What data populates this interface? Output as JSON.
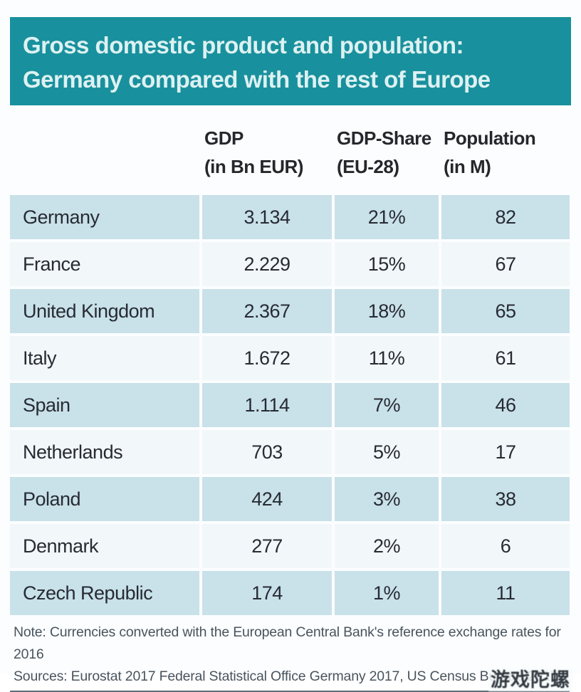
{
  "title": {
    "line1": "Gross domestic product and population:",
    "line2": "Germany compared with the rest of Europe"
  },
  "table": {
    "columns": [
      {
        "line1": "",
        "line2": ""
      },
      {
        "line1": "GDP",
        "line2": "(in Bn EUR)"
      },
      {
        "line1": "GDP-Share",
        "line2": "(EU-28)"
      },
      {
        "line1": "Population",
        "line2": "(in M)"
      }
    ],
    "rows": [
      {
        "country": "Germany",
        "gdp": "3.134",
        "share": "21%",
        "population": "82"
      },
      {
        "country": "France",
        "gdp": "2.229",
        "share": "15%",
        "population": "67"
      },
      {
        "country": "United Kingdom",
        "gdp": "2.367",
        "share": "18%",
        "population": "65"
      },
      {
        "country": "Italy",
        "gdp": "1.672",
        "share": "11%",
        "population": "61"
      },
      {
        "country": "Spain",
        "gdp": "1.114",
        "share": "7%",
        "population": "46"
      },
      {
        "country": "Netherlands",
        "gdp": "703",
        "share": "5%",
        "population": "17"
      },
      {
        "country": "Poland",
        "gdp": "424",
        "share": "3%",
        "population": "38"
      },
      {
        "country": "Denmark",
        "gdp": "277",
        "share": "2%",
        "population": "6"
      },
      {
        "country": "Czech Republic",
        "gdp": "174",
        "share": "1%",
        "population": "11"
      }
    ]
  },
  "footer": {
    "note": "Note: Currencies converted with the European Central Bank's reference exchange rates for 2016",
    "sources": "Sources: Eurostat 2017 Federal Statistical Office Germany 2017, US Census Bureau 2017",
    "watermark": "游戏陀螺"
  },
  "colors": {
    "banner_teal": "#19909d",
    "banner_text": "#ddf1f2",
    "row_alt_blue": "#c9e1e9",
    "row_base": "#f2f7f9",
    "text_dark": "#272b33",
    "note_text": "#49545e"
  },
  "chart_data": {
    "type": "table",
    "title": "Gross domestic product and population: Germany compared with the rest of Europe",
    "columns": [
      "Country",
      "GDP (in Bn EUR)",
      "GDP-Share (EU-28)",
      "Population (in M)"
    ],
    "categories": [
      "Germany",
      "France",
      "United Kingdom",
      "Italy",
      "Spain",
      "Netherlands",
      "Poland",
      "Denmark",
      "Czech Republic"
    ],
    "series": [
      {
        "name": "GDP (in Bn EUR)",
        "values": [
          3134,
          2229,
          2367,
          1672,
          1114,
          703,
          424,
          277,
          174
        ]
      },
      {
        "name": "GDP-Share (EU-28) %",
        "values": [
          21,
          15,
          18,
          11,
          7,
          5,
          3,
          2,
          1
        ]
      },
      {
        "name": "Population (in M)",
        "values": [
          82,
          67,
          65,
          61,
          46,
          17,
          38,
          6,
          11
        ]
      }
    ],
    "note": "Note: Currencies converted with the European Central Bank's reference exchange rates for 2016",
    "sources": "Sources: Eurostat 2017 Federal Statistical Office Germany 2017, US Census Bureau 2017"
  }
}
